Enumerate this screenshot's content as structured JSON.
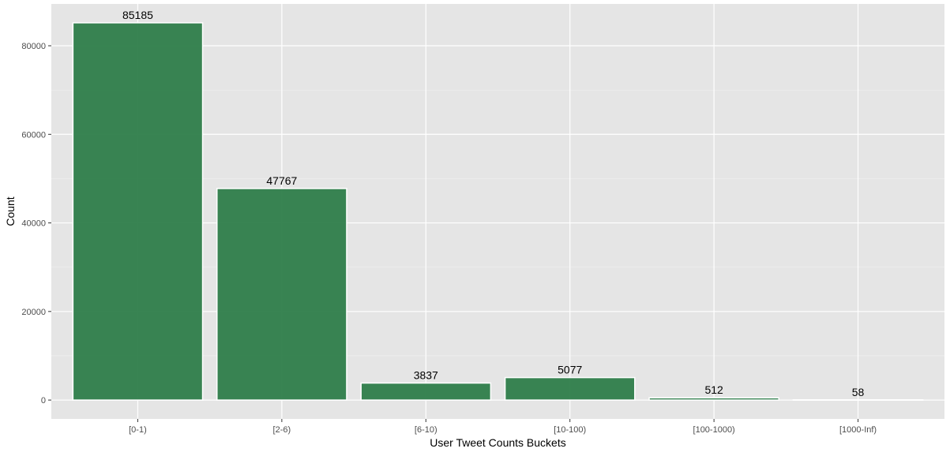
{
  "chart_data": {
    "type": "bar",
    "title": "",
    "xlabel": "User Tweet Counts Buckets",
    "ylabel": "Count",
    "categories": [
      "[0-1)",
      "[2-6)",
      "[6-10)",
      "[10-100)",
      "[100-1000)",
      "[1000-Inf)"
    ],
    "values": [
      85185,
      47767,
      3837,
      5077,
      512,
      58
    ],
    "value_labels": [
      "85185",
      "47767",
      "3837",
      "5077",
      "512",
      "58"
    ],
    "yticks": [
      0,
      20000,
      40000,
      60000,
      80000
    ],
    "ytick_labels": [
      "0",
      "20000",
      "40000",
      "60000",
      "80000"
    ],
    "ylim": [
      -4259,
      89444
    ],
    "grid": true,
    "legend": "none",
    "colors": {
      "bar_fill": "#2e7d4a",
      "bar_stroke": "#ffffff",
      "panel_background": "#e5e5e5",
      "grid_major": "#ffffff",
      "grid_minor": "#f1f1f1",
      "tick_text": "#4d4d4d",
      "label_text": "#000000"
    }
  }
}
